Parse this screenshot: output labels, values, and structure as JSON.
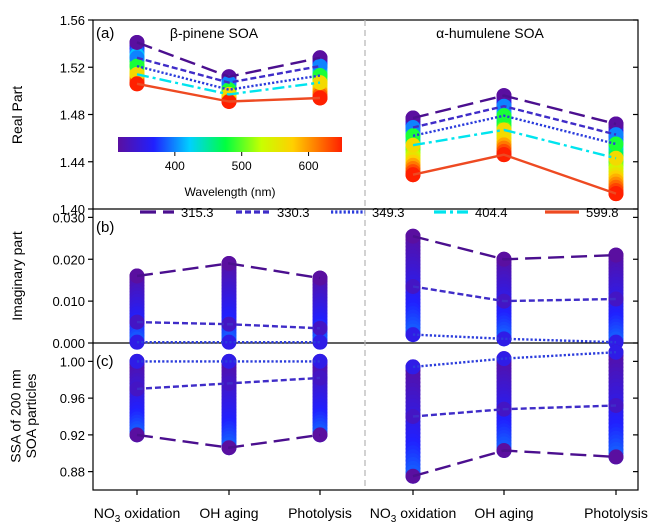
{
  "chart_data": [
    {
      "panel_label": "(a)",
      "type": "scatter",
      "ylabel": "Real Part",
      "ylim": [
        1.4,
        1.56
      ],
      "yticks": [
        "1.40",
        "1.44",
        "1.48",
        "1.52",
        "1.56"
      ],
      "group_titles": [
        "β-pinene SOA",
        "α-humulene SOA"
      ],
      "series": [
        {
          "name": "315.3",
          "values": [
            1.541,
            1.512,
            1.528,
            1.477,
            1.496,
            1.472
          ]
        },
        {
          "name": "330.3",
          "values": [
            1.528,
            1.507,
            1.521,
            1.469,
            1.487,
            1.463
          ]
        },
        {
          "name": "349.3",
          "values": [
            1.521,
            1.501,
            1.513,
            1.462,
            1.479,
            1.455
          ]
        },
        {
          "name": "404.4",
          "values": [
            1.514,
            1.497,
            1.507,
            1.454,
            1.467,
            1.443
          ]
        },
        {
          "name": "599.8",
          "values": [
            1.506,
            1.491,
            1.494,
            1.429,
            1.446,
            1.413
          ]
        }
      ],
      "colorbar": {
        "label": "Wavelength (nm)",
        "ticks": [
          "400",
          "500",
          "600"
        ],
        "range": [
          315,
          650
        ]
      }
    },
    {
      "panel_label": "(b)",
      "type": "scatter",
      "ylabel": "Imaginary part",
      "ylim": [
        0.0,
        0.032
      ],
      "yticks": [
        "0.000",
        "0.010",
        "0.020",
        "0.030"
      ],
      "series": [
        {
          "name": "315.3",
          "values": [
            0.016,
            0.019,
            0.0155,
            0.0255,
            0.02,
            0.021
          ]
        },
        {
          "name": "330.3",
          "values": [
            0.005,
            0.0045,
            0.0035,
            0.0135,
            0.01,
            0.0105
          ]
        },
        {
          "name": "349.3",
          "values": [
            0.0002,
            0.0002,
            0.0002,
            0.002,
            0.001,
            0.0002
          ]
        }
      ]
    },
    {
      "panel_label": "(c)",
      "type": "scatter",
      "ylabel": "SSA of 200 nm SOA particles",
      "ylim": [
        0.86,
        1.02
      ],
      "yticks": [
        "0.88",
        "0.92",
        "0.96",
        "1.00"
      ],
      "series": [
        {
          "name": "315.3",
          "values": [
            0.92,
            0.906,
            0.92,
            0.875,
            0.903,
            0.896
          ]
        },
        {
          "name": "330.3",
          "values": [
            0.97,
            0.976,
            0.982,
            0.94,
            0.948,
            0.952
          ]
        },
        {
          "name": "349.3",
          "values": [
            1.0,
            1.0,
            1.0,
            0.994,
            1.003,
            1.01
          ]
        }
      ]
    }
  ],
  "categories": [
    "NO3 oxidation",
    "OH aging",
    "Photolysis",
    "NO3 oxidation",
    "OH aging",
    "Photolysis"
  ],
  "legend": [
    "315.3",
    "330.3",
    "349.3",
    "404.4",
    "599.8"
  ],
  "colors": {
    "s315": "#4b0f8f",
    "s330": "#3f2cc8",
    "s349": "#2b3cdc",
    "s404": "#00e4ee",
    "s599": "#ee4a22",
    "divider": "#b3b3b3"
  }
}
